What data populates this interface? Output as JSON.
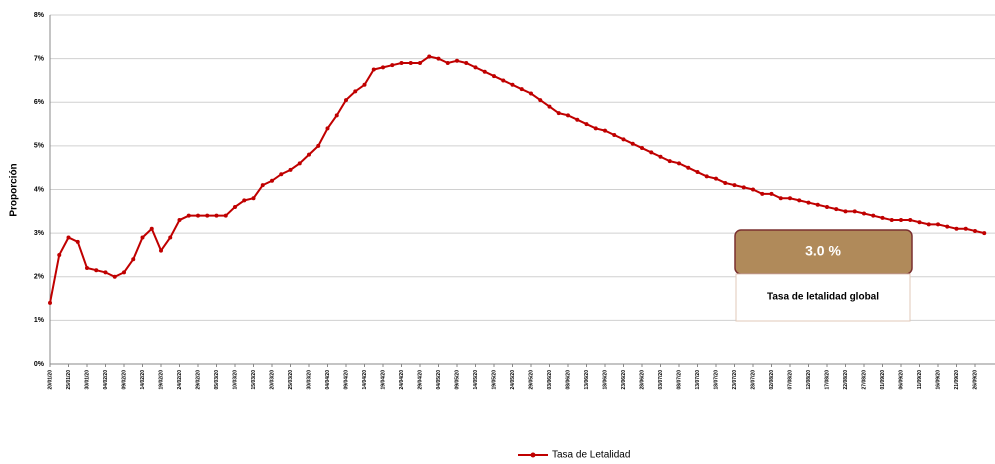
{
  "chart_data": {
    "type": "line",
    "y_label": "Proporción",
    "categories": [
      "20/01/20",
      null,
      "25/01/20",
      null,
      "30/01/20",
      null,
      "04/02/20",
      null,
      "09/02/20",
      null,
      "14/02/20",
      null,
      "19/02/20",
      null,
      "24/02/20",
      null,
      "29/02/20",
      null,
      "05/03/20",
      null,
      "10/03/20",
      null,
      "15/03/20",
      null,
      "20/03/20",
      null,
      "25/03/20",
      null,
      "30/03/20",
      null,
      "04/04/20",
      null,
      "09/04/20",
      null,
      "14/04/20",
      null,
      "19/04/20",
      null,
      "24/04/20",
      null,
      "29/04/20",
      null,
      "04/05/20",
      null,
      "09/05/20",
      null,
      "14/05/20",
      null,
      "19/05/20",
      null,
      "24/05/20",
      null,
      "29/05/20",
      null,
      "03/06/20",
      null,
      "08/06/20",
      null,
      "13/06/20",
      null,
      "18/06/20",
      null,
      "23/06/20",
      null,
      "28/06/20",
      null,
      "03/07/20",
      null,
      "08/07/20",
      null,
      "13/07/20",
      null,
      "18/07/20",
      null,
      "23/07/20",
      null,
      "28/07/20",
      null,
      "02/08/20",
      null,
      "07/08/20",
      null,
      "12/08/20",
      null,
      "17/08/20",
      null,
      "22/08/20",
      null,
      "27/08/20",
      null,
      "01/09/20",
      null,
      "06/09/20",
      null,
      "11/09/20",
      null,
      "16/09/20",
      null,
      "21/09/20",
      null,
      "26/09/20",
      null
    ],
    "series": [
      {
        "name": "Tasa de Letalidad",
        "color": "#c00000",
        "values": [
          1.4,
          2.5,
          2.9,
          2.8,
          2.2,
          2.15,
          2.1,
          2.0,
          2.1,
          2.4,
          2.9,
          3.1,
          2.6,
          2.9,
          3.3,
          3.4,
          3.4,
          3.4,
          3.4,
          3.4,
          3.6,
          3.75,
          3.8,
          4.1,
          4.2,
          4.35,
          4.45,
          4.6,
          4.8,
          5.0,
          5.4,
          5.7,
          6.05,
          6.25,
          6.4,
          6.75,
          6.8,
          6.85,
          6.9,
          6.9,
          6.9,
          7.05,
          7.0,
          6.9,
          6.95,
          6.9,
          6.8,
          6.7,
          6.6,
          6.5,
          6.4,
          6.3,
          6.2,
          6.05,
          5.9,
          5.75,
          5.7,
          5.6,
          5.5,
          5.4,
          5.35,
          5.25,
          5.15,
          5.05,
          4.95,
          4.85,
          4.75,
          4.65,
          4.6,
          4.5,
          4.4,
          4.3,
          4.25,
          4.15,
          4.1,
          4.05,
          4.0,
          3.9,
          3.9,
          3.8,
          3.8,
          3.75,
          3.7,
          3.65,
          3.6,
          3.55,
          3.5,
          3.5,
          3.45,
          3.4,
          3.35,
          3.3,
          3.3,
          3.3,
          3.25,
          3.2,
          3.2,
          3.15,
          3.1,
          3.1,
          3.05,
          3.0
        ]
      }
    ],
    "ylim": [
      0,
      8
    ],
    "yticks": [
      {
        "value": 0,
        "label": "0%"
      },
      {
        "value": 1,
        "label": "1%"
      },
      {
        "value": 2,
        "label": "2%"
      },
      {
        "value": 3,
        "label": "3%"
      },
      {
        "value": 4,
        "label": "4%"
      },
      {
        "value": 5,
        "label": "5%"
      },
      {
        "value": 6,
        "label": "6%"
      },
      {
        "value": 7,
        "label": "7%"
      },
      {
        "value": 8,
        "label": "8%"
      }
    ],
    "grid": true,
    "legend": "bottom",
    "annotations": [
      "3.0 %",
      "Tasa de letalidad global"
    ]
  }
}
